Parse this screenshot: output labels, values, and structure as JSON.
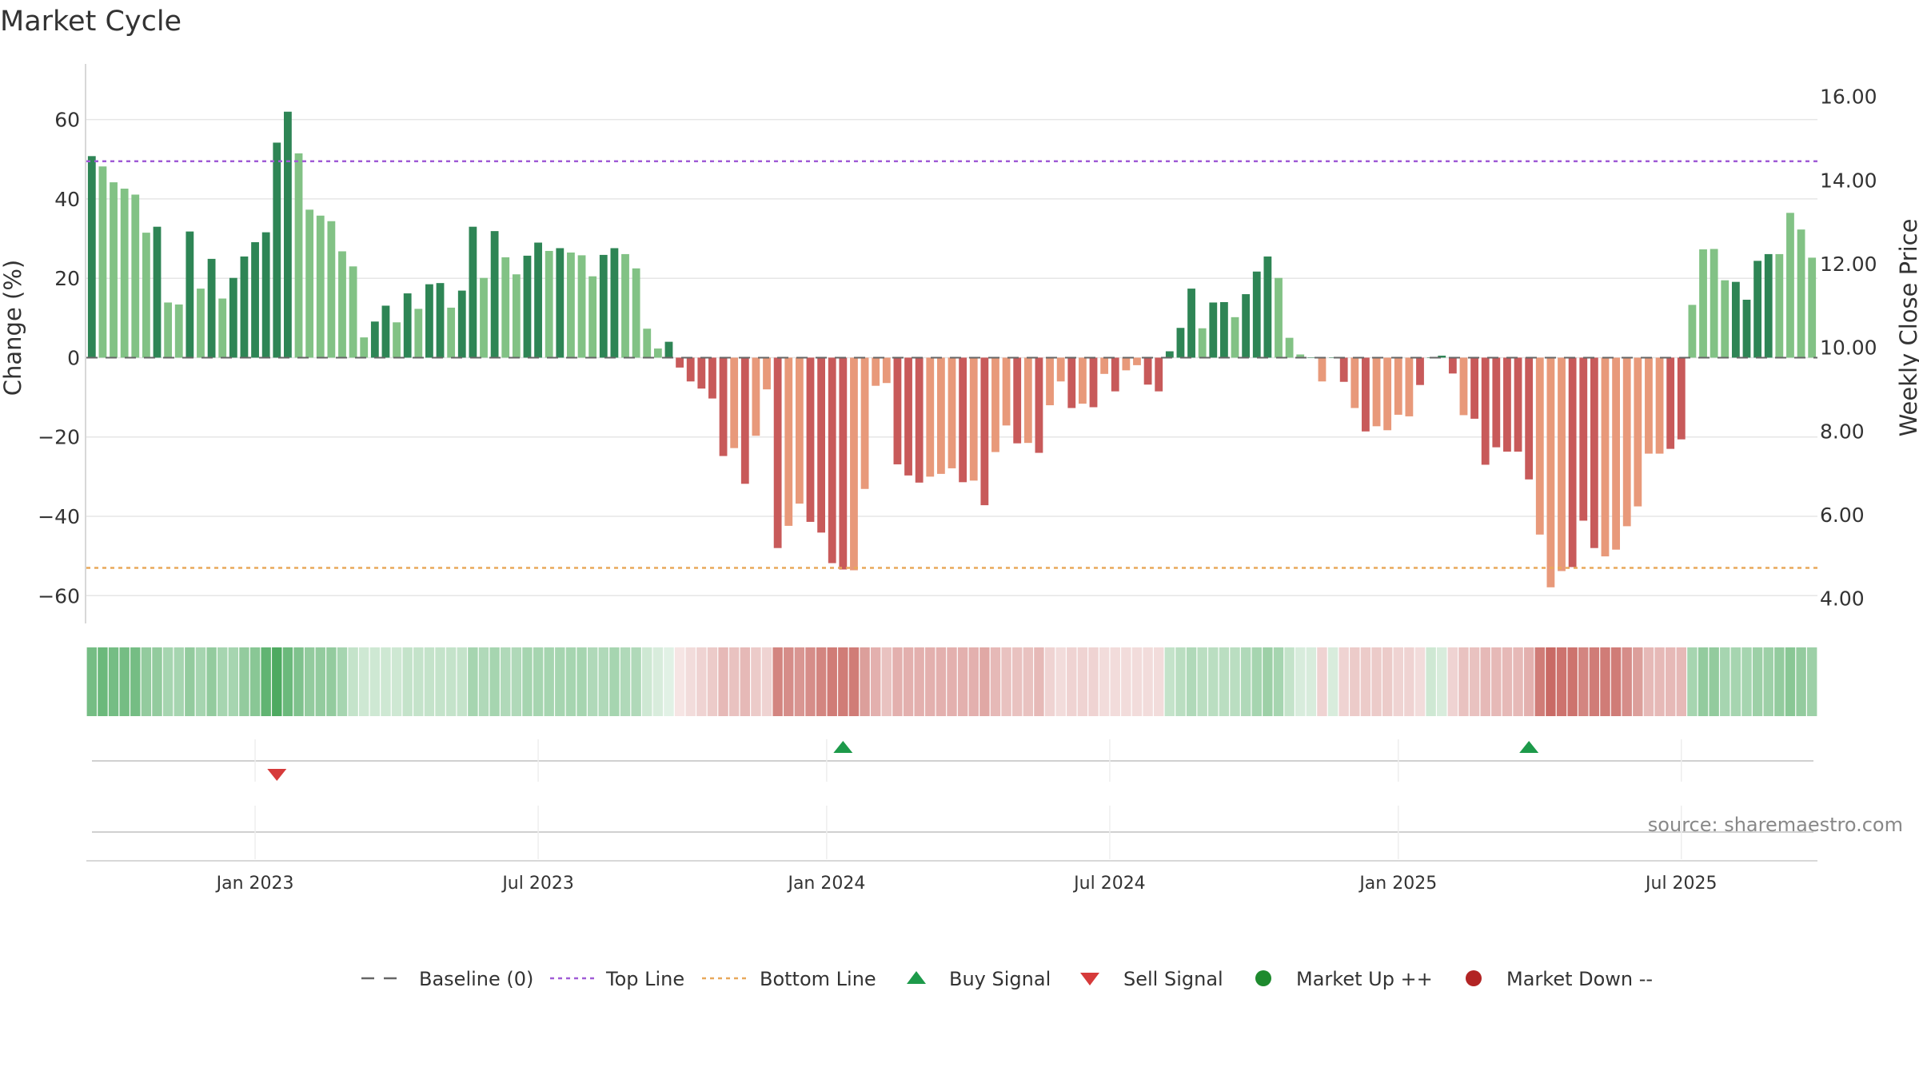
{
  "colors": {
    "up_strong": "#2e8555",
    "up_light": "#82c285",
    "down_strong": "#c85a5a",
    "down_light": "#e8997a",
    "top_line": "#a05cd6",
    "bottom_line": "#e8a85a",
    "baseline": "#666666",
    "buy": "#1d9a4a",
    "sell": "#d63a3a",
    "market_up": "#1e8a2e",
    "market_down": "#b22424"
  },
  "chart_data": {
    "type": "bar",
    "title": "Market Cycle",
    "source": "source: sharemaestro.com",
    "ylabel_left": "Change (%)",
    "ylabel_right": "Weekly Close Price",
    "ylim_left": [
      -67,
      69
    ],
    "ylim_right": [
      3.4,
      16.3
    ],
    "yticks_left": [
      {
        "v": 60,
        "label": "60"
      },
      {
        "v": 40,
        "label": "40"
      },
      {
        "v": 20,
        "label": "20"
      },
      {
        "v": 0,
        "label": "0"
      },
      {
        "v": -20,
        "label": "−20"
      },
      {
        "v": -40,
        "label": "−40"
      },
      {
        "v": -60,
        "label": "−60"
      }
    ],
    "yticks_right": [
      {
        "v": 16,
        "label": "16.00"
      },
      {
        "v": 14,
        "label": "14.00"
      },
      {
        "v": 12,
        "label": "12.00"
      },
      {
        "v": 10,
        "label": "10.00"
      },
      {
        "v": 8,
        "label": "8.00"
      },
      {
        "v": 6,
        "label": "6.00"
      },
      {
        "v": 4,
        "label": "4.00"
      }
    ],
    "top_line": 49.5,
    "bottom_line": -53,
    "start_week": 0,
    "xticks": [
      {
        "week": 15,
        "label": "Jan 2023"
      },
      {
        "week": 41,
        "label": "Jul 2023"
      },
      {
        "week": 67.5,
        "label": "Jan 2024"
      },
      {
        "week": 93.5,
        "label": "Jul 2024"
      },
      {
        "week": 120,
        "label": "Jan 2025"
      },
      {
        "week": 146,
        "label": "Jul 2025"
      }
    ],
    "values": [
      50.8,
      48.2,
      44.2,
      42.6,
      41.1,
      31.5,
      33.0,
      13.9,
      13.4,
      31.8,
      17.4,
      24.9,
      14.9,
      20.1,
      25.5,
      29.1,
      31.6,
      54.2,
      62.0,
      51.5,
      37.3,
      35.8,
      34.4,
      26.8,
      23.0,
      5.1,
      9.1,
      13.1,
      8.9,
      16.2,
      12.3,
      18.5,
      18.8,
      12.6,
      16.9,
      33.0,
      20.1,
      31.9,
      25.3,
      21.0,
      25.7,
      29.0,
      26.9,
      27.6,
      26.5,
      25.8,
      20.5,
      25.9,
      27.6,
      26.1,
      22.5,
      7.3,
      2.3,
      4.0,
      -2.5,
      -6.0,
      -7.8,
      -10.3,
      -24.8,
      -22.8,
      -31.8,
      -19.7,
      -8.0,
      -48.0,
      -42.4,
      -36.8,
      -41.4,
      -44.1,
      -51.8,
      -53.4,
      -53.6,
      -33.1,
      -7.1,
      -6.4,
      -26.9,
      -29.7,
      -31.5,
      -30.0,
      -29.3,
      -27.9,
      -31.4,
      -31.0,
      -37.2,
      -23.8,
      -17.1,
      -21.6,
      -21.5,
      -24.0,
      -12.0,
      -6.0,
      -12.7,
      -11.6,
      -12.5,
      -4.1,
      -8.5,
      -3.2,
      -1.9,
      -6.8,
      -8.5,
      1.6,
      7.5,
      17.4,
      7.4,
      13.9,
      14.0,
      10.2,
      16.0,
      21.7,
      25.5,
      20.1,
      5.0,
      0.8,
      0,
      -6.0,
      0,
      -6.1,
      -12.7,
      -18.6,
      -17.3,
      -18.3,
      -14.4,
      -14.8,
      -6.9,
      0,
      0.5,
      -4.0,
      -14.5,
      -15.4,
      -27.0,
      -22.6,
      -23.7,
      -23.7,
      -30.7,
      -44.6,
      -57.9,
      -53.8,
      -52.8,
      -41.1,
      -48.0,
      -50.1,
      -48.4,
      -42.5,
      -37.5,
      -24.2,
      -24.2,
      -23.0,
      -20.6,
      13.3,
      27.3,
      27.4,
      19.5,
      19.1,
      14.6,
      24.4,
      26.1,
      26.1,
      36.5,
      32.3,
      25.2
    ],
    "strong": [
      1,
      0,
      0,
      0,
      0,
      0,
      1,
      0,
      0,
      1,
      0,
      1,
      0,
      1,
      1,
      1,
      1,
      1,
      1,
      0,
      0,
      0,
      0,
      0,
      0,
      0,
      1,
      1,
      0,
      1,
      0,
      1,
      1,
      0,
      1,
      1,
      0,
      1,
      0,
      0,
      1,
      1,
      0,
      1,
      0,
      0,
      0,
      1,
      1,
      0,
      0,
      0,
      0,
      1,
      1,
      1,
      1,
      1,
      1,
      0,
      1,
      0,
      0,
      1,
      0,
      0,
      1,
      1,
      1,
      1,
      0,
      0,
      0,
      0,
      1,
      1,
      1,
      0,
      0,
      0,
      1,
      0,
      1,
      0,
      0,
      1,
      0,
      1,
      0,
      0,
      1,
      0,
      1,
      0,
      1,
      0,
      0,
      1,
      1,
      1,
      1,
      1,
      0,
      1,
      1,
      0,
      1,
      1,
      1,
      0,
      0,
      0,
      1,
      0,
      1,
      1,
      0,
      1,
      0,
      0,
      0,
      0,
      1,
      1,
      1,
      1,
      0,
      1,
      1,
      1,
      1,
      1,
      1,
      0,
      0,
      0,
      1,
      1,
      1,
      0,
      0,
      0,
      0,
      0,
      0,
      1,
      1,
      0,
      0,
      0,
      0,
      1,
      1,
      1,
      1,
      0,
      0
    ],
    "heat": [
      0.7,
      0.75,
      0.7,
      0.7,
      0.7,
      0.55,
      0.55,
      0.45,
      0.45,
      0.55,
      0.45,
      0.55,
      0.45,
      0.45,
      0.55,
      0.6,
      0.8,
      0.9,
      0.75,
      0.65,
      0.55,
      0.55,
      0.55,
      0.45,
      0.3,
      0.25,
      0.25,
      0.25,
      0.25,
      0.3,
      0.3,
      0.3,
      0.3,
      0.3,
      0.3,
      0.45,
      0.4,
      0.45,
      0.4,
      0.4,
      0.45,
      0.45,
      0.45,
      0.45,
      0.45,
      0.45,
      0.4,
      0.4,
      0.45,
      0.4,
      0.4,
      0.25,
      0.2,
      0.15,
      0.15,
      0.2,
      0.25,
      0.3,
      0.4,
      0.35,
      0.4,
      0.3,
      0.25,
      0.7,
      0.65,
      0.6,
      0.65,
      0.7,
      0.75,
      0.75,
      0.75,
      0.55,
      0.45,
      0.35,
      0.45,
      0.45,
      0.45,
      0.45,
      0.45,
      0.45,
      0.45,
      0.45,
      0.5,
      0.4,
      0.35,
      0.35,
      0.35,
      0.4,
      0.25,
      0.2,
      0.25,
      0.25,
      0.25,
      0.2,
      0.2,
      0.2,
      0.2,
      0.2,
      0.2,
      0.3,
      0.35,
      0.4,
      0.35,
      0.35,
      0.35,
      0.35,
      0.4,
      0.45,
      0.5,
      0.45,
      0.3,
      0.2,
      0.2,
      0.25,
      0.2,
      0.25,
      0.3,
      0.3,
      0.3,
      0.3,
      0.25,
      0.25,
      0.2,
      0.25,
      0.2,
      0.25,
      0.35,
      0.35,
      0.4,
      0.4,
      0.4,
      0.4,
      0.45,
      0.75,
      0.85,
      0.8,
      0.8,
      0.7,
      0.75,
      0.75,
      0.75,
      0.65,
      0.55,
      0.4,
      0.4,
      0.4,
      0.4,
      0.45,
      0.55,
      0.55,
      0.45,
      0.45,
      0.45,
      0.5,
      0.5,
      0.55,
      0.6,
      0.55,
      0.5
    ],
    "buy_signals": [
      69,
      132
    ],
    "sell_signals": [
      17
    ],
    "legend": [
      {
        "key": "baseline",
        "label": "Baseline (0)"
      },
      {
        "key": "top",
        "label": "Top Line"
      },
      {
        "key": "bottom",
        "label": "Bottom Line"
      },
      {
        "key": "buy",
        "label": "Buy Signal"
      },
      {
        "key": "sell",
        "label": "Sell Signal"
      },
      {
        "key": "up",
        "label": "Market Up ++"
      },
      {
        "key": "down",
        "label": "Market Down --"
      }
    ]
  }
}
